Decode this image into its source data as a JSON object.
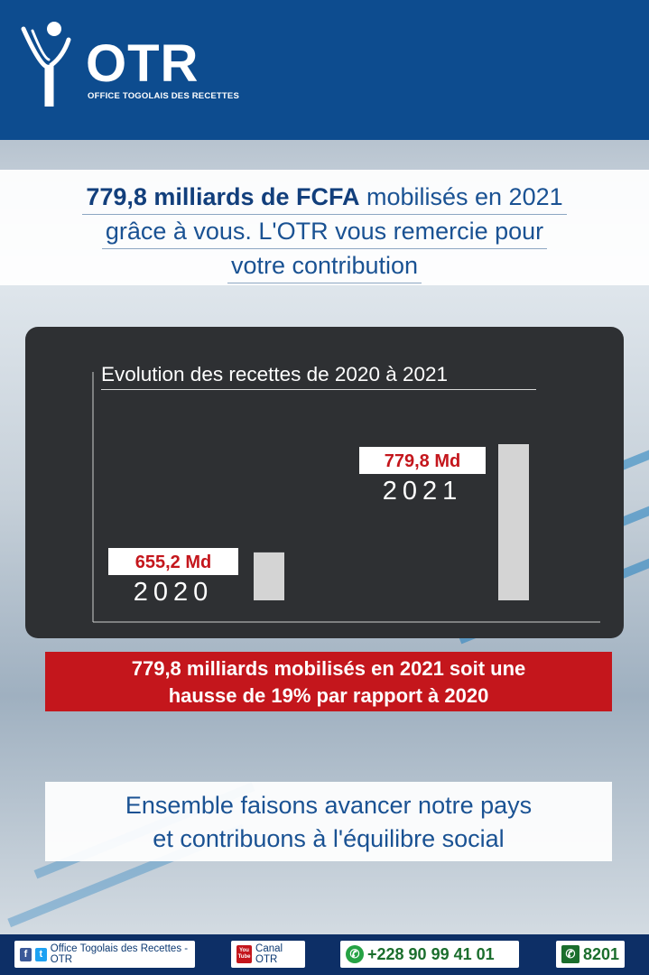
{
  "brand": {
    "logo_text": "OTR",
    "logo_subtitle": "OFFICE TOGOLAIS DES RECETTES"
  },
  "headline": {
    "line1_bold": "779,8 milliards de FCFA",
    "line1_rest": " mobilisés en 2021",
    "line2": "grâce à vous. L'OTR vous remercie pour",
    "line3": "votre contribution"
  },
  "chart_data": {
    "type": "bar",
    "title": "Evolution des recettes de 2020 à 2021",
    "categories": [
      "2020",
      "2021"
    ],
    "values": [
      655.2,
      779.8
    ],
    "value_labels": [
      "655,2 Md",
      "779,8 Md"
    ],
    "ylim": [
      0,
      800
    ],
    "grid": false,
    "legend": "none"
  },
  "banner": {
    "line1": "779,8 milliards mobilisés en 2021 soit une",
    "line2": "hausse de 19% par rapport à 2020"
  },
  "closing": {
    "line1": "Ensemble faisons avancer notre pays",
    "line2": "et contribuons à l'équilibre social"
  },
  "footer": {
    "social": "Office Togolais des Recettes - OTR",
    "youtube_icon_text": "You Tube",
    "youtube": "Canal OTR",
    "whatsapp": "+228 90 99 41 01",
    "phone": "8201"
  },
  "colors": {
    "header": "#0d4c8f",
    "accent_red": "#c4161c",
    "bar": "#d4d4d4",
    "card": "#2e3033"
  }
}
